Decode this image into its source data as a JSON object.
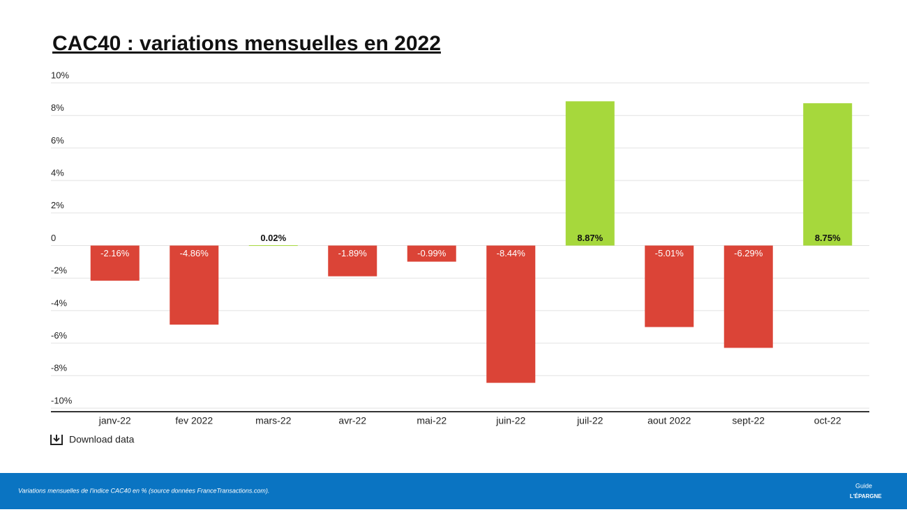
{
  "chart_data": {
    "type": "bar",
    "title": "CAC40 : variations mensuelles en 2022",
    "categories": [
      "janv-22",
      "fev 2022",
      "mars-22",
      "avr-22",
      "mai-22",
      "juin-22",
      "juil-22",
      "aout 2022",
      "sept-22",
      "oct-22"
    ],
    "values": [
      -2.16,
      -4.86,
      0.02,
      -1.89,
      -0.99,
      -8.44,
      8.87,
      -5.01,
      -6.29,
      8.75
    ],
    "value_labels": [
      "-2.16%",
      "-4.86%",
      "0.02%",
      "-1.89%",
      "-0.99%",
      "-8.44%",
      "8.87%",
      "-5.01%",
      "-6.29%",
      "8.75%"
    ],
    "colors": [
      "#db4437",
      "#db4437",
      "#a6d83c",
      "#db4437",
      "#db4437",
      "#db4437",
      "#a6d83c",
      "#db4437",
      "#db4437",
      "#a6d83c"
    ],
    "ylim": [
      -10,
      10
    ],
    "yticks": [
      {
        "value": -10,
        "label": "-10%"
      },
      {
        "value": -8,
        "label": "-8%"
      },
      {
        "value": -6,
        "label": "-6%"
      },
      {
        "value": -4,
        "label": "-4%"
      },
      {
        "value": -2,
        "label": "-2%"
      },
      0,
      {
        "value": 2,
        "label": "2%"
      },
      {
        "value": 4,
        "label": "4%"
      },
      {
        "value": 6,
        "label": "6%"
      },
      {
        "value": 8,
        "label": "8%"
      },
      {
        "value": 10,
        "label": "10%"
      }
    ],
    "grid": true
  },
  "download": "Download data",
  "footer": {
    "caption": "Variations mensuelles de l'indice CAC40 en % (source données FranceTransactions.com).",
    "logo_top": "Guide",
    "logo_bottom": "L'ÉPARGNE"
  }
}
